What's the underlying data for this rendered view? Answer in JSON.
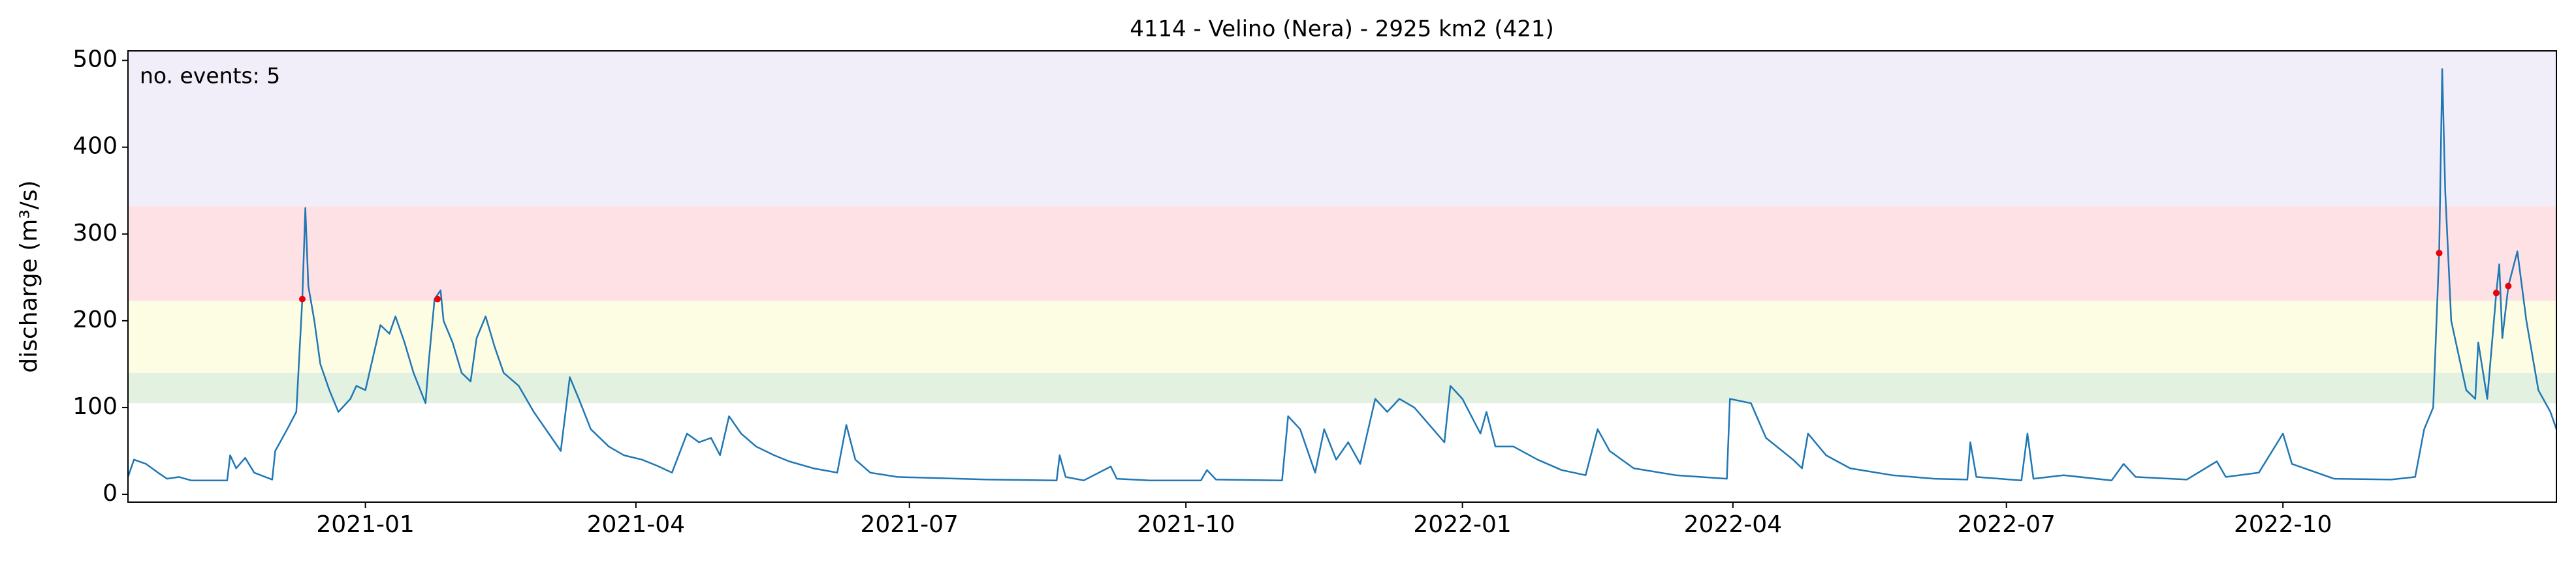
{
  "chart_data": {
    "type": "line",
    "title": "4114 - Velino (Nera) - 2925 km2 (421)",
    "ylabel": "discharge (m³/s)",
    "annotation": "no. events: 5",
    "annotation_color": "#e8000b",
    "xlim": [
      -79,
      729
    ],
    "ylim": [
      -9,
      511
    ],
    "xticks": [
      {
        "value": 0,
        "label": "2021-01"
      },
      {
        "value": 90,
        "label": "2021-04"
      },
      {
        "value": 181,
        "label": "2021-07"
      },
      {
        "value": 273,
        "label": "2021-10"
      },
      {
        "value": 365,
        "label": "2022-01"
      },
      {
        "value": 455,
        "label": "2022-04"
      },
      {
        "value": 546,
        "label": "2022-07"
      },
      {
        "value": 638,
        "label": "2022-10"
      }
    ],
    "yticks": [
      0,
      100,
      200,
      300,
      400,
      500
    ],
    "bands": [
      {
        "from": 105,
        "to": 140,
        "color": "#e3f1e1"
      },
      {
        "from": 140,
        "to": 223,
        "color": "#fdfde3"
      },
      {
        "from": 223,
        "to": 332,
        "color": "#fde1e5"
      },
      {
        "from": 332,
        "to": 511,
        "color": "#f2eef9"
      }
    ],
    "series": [
      {
        "type": "line",
        "color": "#1f77b4",
        "x": [
          -79,
          -77,
          -73,
          -69,
          -66,
          -62,
          -58,
          -46,
          -45,
          -43,
          -40,
          -37,
          -31,
          -30,
          -26,
          -23,
          -21,
          -20,
          -19,
          -17,
          -15,
          -12,
          -9,
          -5,
          -3,
          0,
          3,
          5,
          8,
          10,
          13,
          16,
          20,
          21,
          23,
          25,
          26,
          29,
          32,
          35,
          37,
          40,
          43,
          46,
          51,
          56,
          62,
          65,
          68,
          71,
          75,
          81,
          86,
          92,
          97,
          102,
          107,
          111,
          115,
          118,
          121,
          125,
          130,
          136,
          141,
          149,
          157,
          160,
          163,
          168,
          177,
          207,
          230,
          231,
          233,
          239,
          248,
          250,
          261,
          278,
          280,
          283,
          305,
          307,
          311,
          313,
          316,
          319,
          323,
          327,
          331,
          336,
          340,
          344,
          349,
          354,
          359,
          361,
          365,
          371,
          373,
          376,
          382,
          390,
          398,
          406,
          410,
          414,
          422,
          436,
          453,
          454,
          461,
          466,
          475,
          478,
          480,
          486,
          494,
          508,
          522,
          533,
          534,
          536,
          551,
          553,
          555,
          565,
          581,
          585,
          589,
          606,
          616,
          619,
          630,
          638,
          641,
          655,
          674,
          682,
          685,
          688,
          690,
          691,
          692,
          694,
          699,
          702,
          703,
          706,
          709,
          710,
          711,
          713,
          716,
          719,
          723,
          727,
          729
        ],
        "values": [
          20,
          40,
          35,
          25,
          18,
          20,
          16,
          16,
          45,
          30,
          42,
          25,
          17,
          50,
          75,
          95,
          225,
          330,
          240,
          200,
          150,
          120,
          95,
          110,
          125,
          120,
          165,
          195,
          185,
          205,
          175,
          140,
          105,
          150,
          225,
          235,
          200,
          175,
          140,
          130,
          180,
          205,
          170,
          140,
          125,
          95,
          65,
          50,
          135,
          110,
          75,
          55,
          45,
          40,
          33,
          25,
          70,
          60,
          65,
          45,
          90,
          70,
          55,
          45,
          38,
          30,
          25,
          80,
          40,
          25,
          20,
          17,
          16,
          45,
          20,
          16,
          32,
          18,
          16,
          16,
          28,
          17,
          16,
          90,
          75,
          55,
          25,
          75,
          40,
          60,
          35,
          110,
          95,
          110,
          100,
          80,
          60,
          125,
          110,
          70,
          95,
          55,
          55,
          40,
          28,
          22,
          75,
          50,
          30,
          22,
          18,
          110,
          105,
          65,
          40,
          30,
          70,
          45,
          30,
          22,
          18,
          17,
          60,
          20,
          16,
          70,
          18,
          22,
          16,
          35,
          20,
          17,
          38,
          20,
          25,
          70,
          35,
          18,
          17,
          20,
          75,
          100,
          280,
          490,
          350,
          200,
          120,
          110,
          175,
          110,
          232,
          265,
          180,
          240,
          280,
          200,
          120,
          95,
          75
        ]
      },
      {
        "type": "scatter",
        "color": "#e8000b",
        "x": [
          -21,
          24,
          690,
          709,
          713
        ],
        "values": [
          225,
          225,
          278,
          232,
          240
        ]
      }
    ]
  }
}
